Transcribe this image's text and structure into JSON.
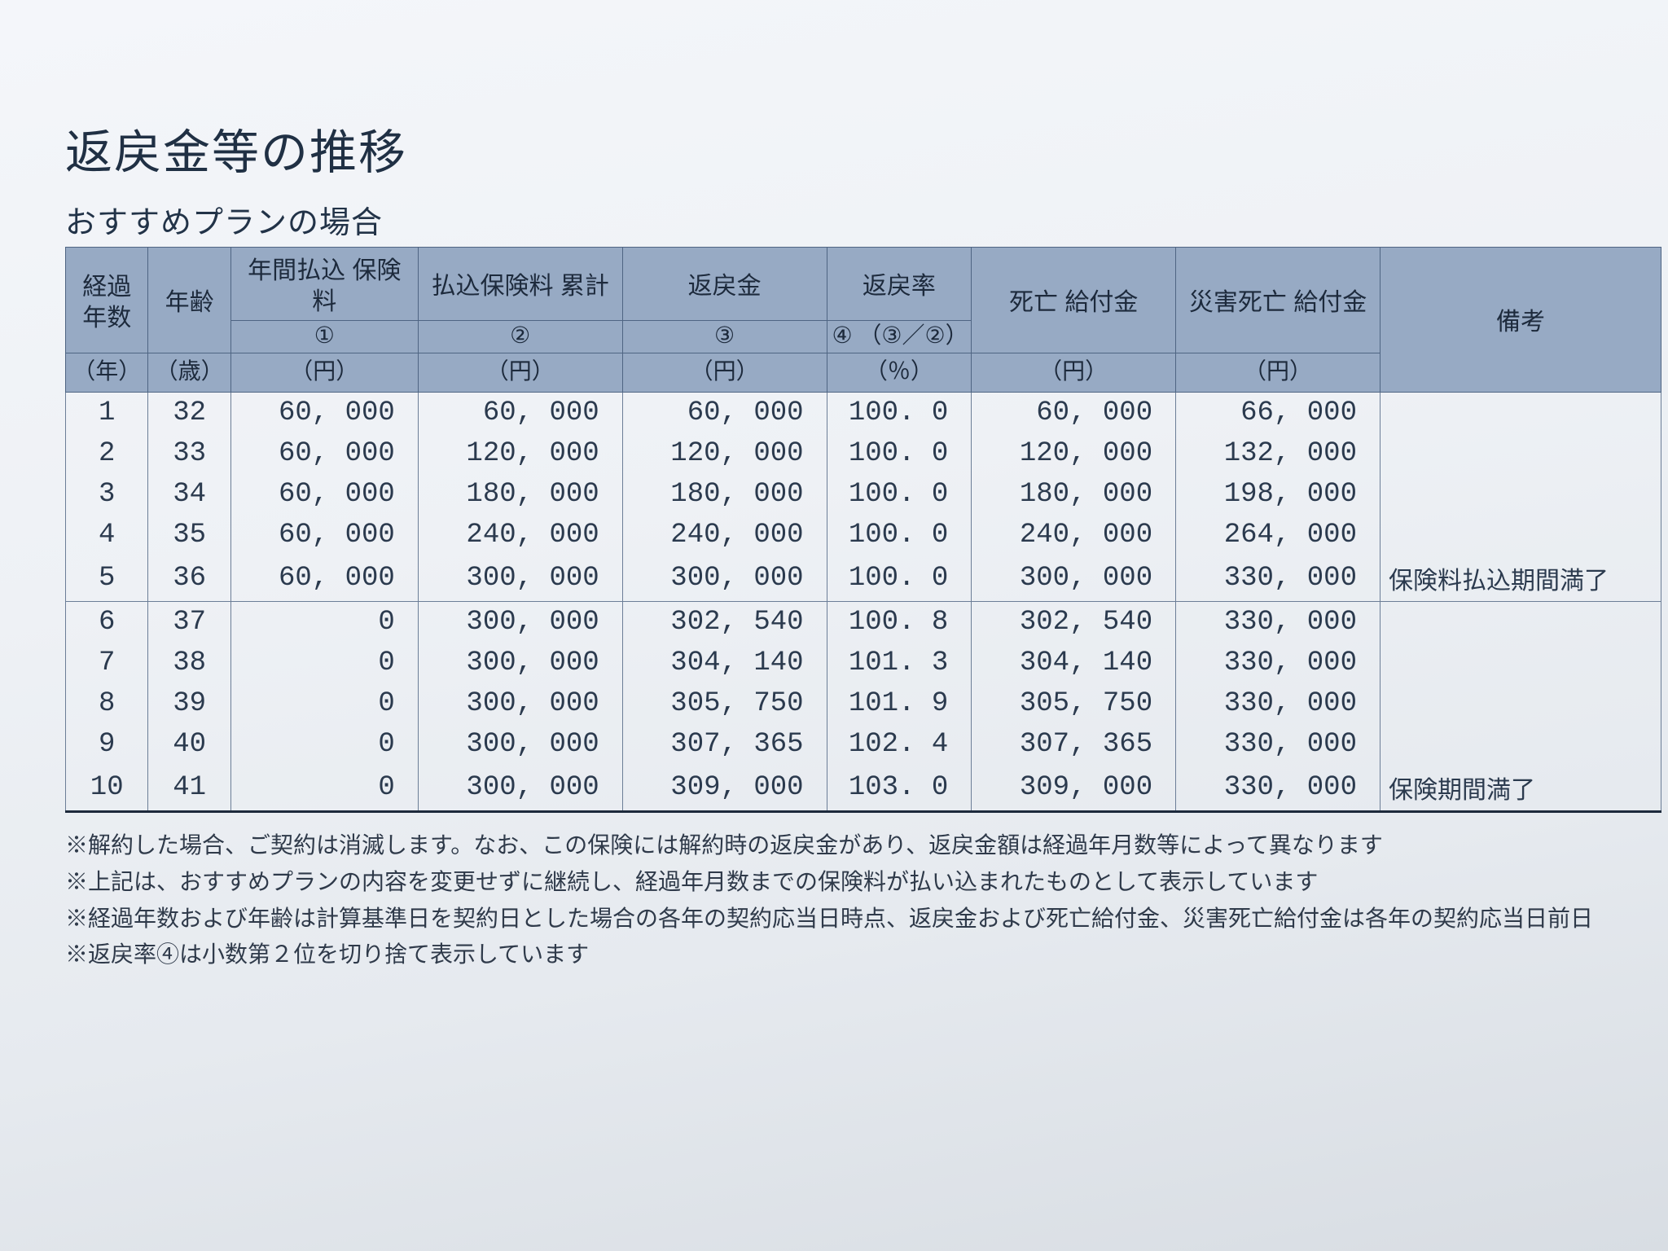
{
  "title": "返戻金等の推移",
  "subtitle": "おすすめプランの場合",
  "header": {
    "col1": "経過\n年数",
    "col1_unit": "（年）",
    "col2": "年齢",
    "col2_unit": "（歳）",
    "col3": "年間払込\n保険料",
    "col3_sub": "①",
    "col3_unit": "（円）",
    "col4": "払込保険料\n累計",
    "col4_sub": "②",
    "col4_unit": "（円）",
    "col5": "返戻金",
    "col5_sub": "③",
    "col5_unit": "（円）",
    "col6": "返戻率",
    "col6_sub": "④\n（③／②）",
    "col6_unit": "（％）",
    "col7": "死亡\n給付金",
    "col7_unit": "（円）",
    "col8": "災害死亡\n給付金",
    "col8_unit": "（円）",
    "col9": "備考"
  },
  "rows": [
    {
      "yr": "1",
      "age": "32",
      "annual": "60, 000",
      "cum": "60, 000",
      "ref": "60, 000",
      "rate": "100. 0",
      "death": "60, 000",
      "dis": "66, 000",
      "rem": ""
    },
    {
      "yr": "2",
      "age": "33",
      "annual": "60, 000",
      "cum": "120, 000",
      "ref": "120, 000",
      "rate": "100. 0",
      "death": "120, 000",
      "dis": "132, 000",
      "rem": ""
    },
    {
      "yr": "3",
      "age": "34",
      "annual": "60, 000",
      "cum": "180, 000",
      "ref": "180, 000",
      "rate": "100. 0",
      "death": "180, 000",
      "dis": "198, 000",
      "rem": ""
    },
    {
      "yr": "4",
      "age": "35",
      "annual": "60, 000",
      "cum": "240, 000",
      "ref": "240, 000",
      "rate": "100. 0",
      "death": "240, 000",
      "dis": "264, 000",
      "rem": ""
    },
    {
      "yr": "5",
      "age": "36",
      "annual": "60, 000",
      "cum": "300, 000",
      "ref": "300, 000",
      "rate": "100. 0",
      "death": "300, 000",
      "dis": "330, 000",
      "rem": "保険料払込期間満了"
    },
    {
      "yr": "6",
      "age": "37",
      "annual": "0",
      "cum": "300, 000",
      "ref": "302, 540",
      "rate": "100. 8",
      "death": "302, 540",
      "dis": "330, 000",
      "rem": ""
    },
    {
      "yr": "7",
      "age": "38",
      "annual": "0",
      "cum": "300, 000",
      "ref": "304, 140",
      "rate": "101. 3",
      "death": "304, 140",
      "dis": "330, 000",
      "rem": ""
    },
    {
      "yr": "8",
      "age": "39",
      "annual": "0",
      "cum": "300, 000",
      "ref": "305, 750",
      "rate": "101. 9",
      "death": "305, 750",
      "dis": "330, 000",
      "rem": ""
    },
    {
      "yr": "9",
      "age": "40",
      "annual": "0",
      "cum": "300, 000",
      "ref": "307, 365",
      "rate": "102. 4",
      "death": "307, 365",
      "dis": "330, 000",
      "rem": ""
    },
    {
      "yr": "10",
      "age": "41",
      "annual": "0",
      "cum": "300, 000",
      "ref": "309, 000",
      "rate": "103. 0",
      "death": "309, 000",
      "dis": "330, 000",
      "rem": "保険期間満了"
    }
  ],
  "groupBreakAfter": 5,
  "notes": [
    "※解約した場合、ご契約は消滅します。なお、この保険には解約時の返戻金があり、返戻金額は経過年月数等によって異なります",
    "※上記は、おすすめプランの内容を変更せずに継続し、経過年月数までの保険料が払い込まれたものとして表示しています",
    "※経過年数および年齢は計算基準日を契約日とした場合の各年の契約応当日時点、返戻金および死亡給付金、災害死亡給付金は各年の契約応当日前日",
    "※返戻率④は小数第２位を切り捨て表示しています"
  ],
  "style": {
    "header_bg": "#97aac4",
    "border_color": "#4f6583",
    "body_border": "#6c7e97",
    "bottom_border": "#1d2a3c",
    "text_color": "#2f3a4a",
    "title_fontsize": 58,
    "subtitle_fontsize": 38,
    "header_fontsize": 30,
    "cell_fontsize": 34,
    "notes_fontsize": 28
  }
}
